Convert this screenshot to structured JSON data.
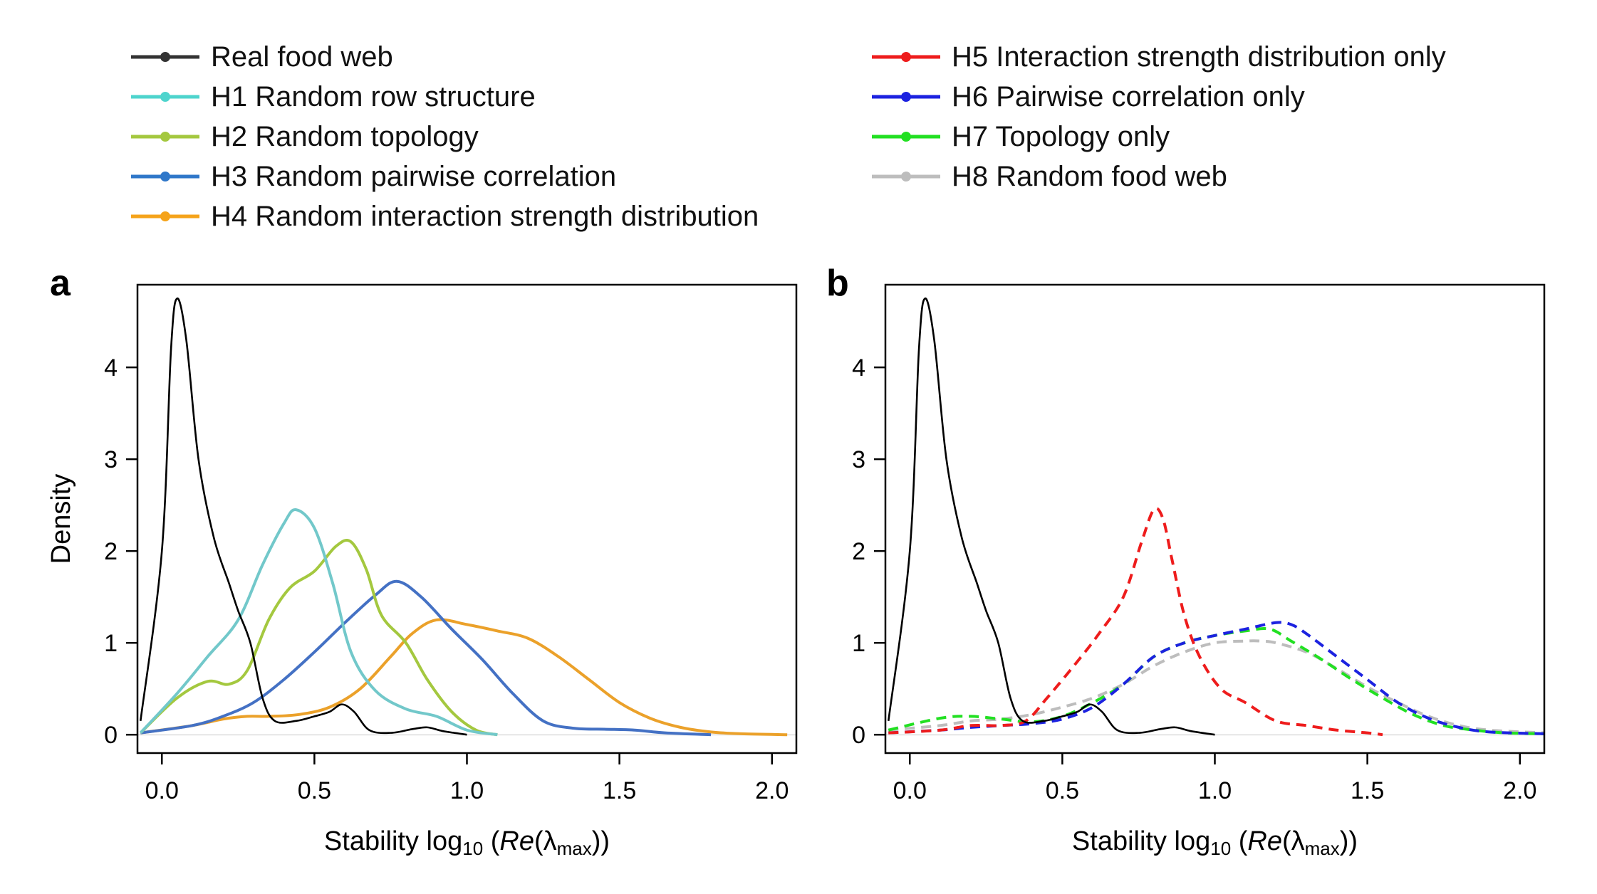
{
  "legend": {
    "left": [
      {
        "label": "Real food web",
        "color": "#333333",
        "dash": false
      },
      {
        "label": "H1 Random row structure",
        "color": "#4ed4cd",
        "dash": false
      },
      {
        "label": "H2 Random topology",
        "color": "#a4c83f",
        "dash": false
      },
      {
        "label": "H3 Random pairwise correlation",
        "color": "#2f77c9",
        "dash": false
      },
      {
        "label": "H4 Random interaction strength distribution",
        "color": "#f5a31a",
        "dash": false
      }
    ],
    "right": [
      {
        "label": "H5 Interaction strength distribution only",
        "color": "#ee1c1c",
        "dash": false
      },
      {
        "label": "H6 Pairwise correlation only",
        "color": "#1c22e0",
        "dash": false
      },
      {
        "label": "H7 Topology only",
        "color": "#22e022",
        "dash": false
      },
      {
        "label": "H8 Random food web",
        "color": "#bdbdbd",
        "dash": false
      }
    ]
  },
  "chart_data": [
    {
      "panel": "a",
      "type": "line",
      "title": "",
      "xlabel": "Stability log10 (Re(λmax))",
      "xlabel_parts": {
        "prefix": "Stability log",
        "sub": "10",
        "open": " (",
        "italic": "Re",
        "mid": "(λ",
        "sub2": "max",
        "close": "))"
      },
      "ylabel": "Density",
      "xlim": [
        -0.08,
        2.08
      ],
      "ylim": [
        -0.2,
        4.9
      ],
      "xticks": [
        0.0,
        0.5,
        1.0,
        1.5,
        2.0
      ],
      "xtick_labels": [
        "0.0",
        "0.5",
        "1.0",
        "1.5",
        "2.0"
      ],
      "yticks": [
        0,
        1,
        2,
        3,
        4
      ],
      "ytick_labels": [
        "0",
        "1",
        "2",
        "3",
        "4"
      ],
      "legend_position": "top",
      "series": [
        {
          "name": "H4 Random interaction strength distribution",
          "color": "#eba12a",
          "dash": false,
          "x": [
            -0.07,
            0.1,
            0.2,
            0.28,
            0.35,
            0.45,
            0.55,
            0.65,
            0.75,
            0.82,
            0.9,
            1.0,
            1.1,
            1.2,
            1.3,
            1.4,
            1.5,
            1.6,
            1.7,
            1.8,
            1.9,
            2.05
          ],
          "y": [
            0.02,
            0.1,
            0.17,
            0.2,
            0.2,
            0.22,
            0.3,
            0.5,
            0.85,
            1.1,
            1.25,
            1.2,
            1.13,
            1.05,
            0.85,
            0.6,
            0.35,
            0.18,
            0.08,
            0.03,
            0.01,
            0.0
          ]
        },
        {
          "name": "H3 Random pairwise correlation",
          "color": "#4471c4",
          "dash": false,
          "x": [
            -0.07,
            0.1,
            0.2,
            0.3,
            0.4,
            0.5,
            0.6,
            0.7,
            0.77,
            0.85,
            0.95,
            1.05,
            1.15,
            1.25,
            1.35,
            1.45,
            1.55,
            1.65,
            1.8
          ],
          "y": [
            0.02,
            0.1,
            0.2,
            0.35,
            0.6,
            0.9,
            1.22,
            1.52,
            1.67,
            1.5,
            1.15,
            0.82,
            0.45,
            0.15,
            0.07,
            0.06,
            0.05,
            0.02,
            0.0
          ]
        },
        {
          "name": "H2 Random topology",
          "color": "#a4c83f",
          "dash": false,
          "x": [
            -0.07,
            0.05,
            0.15,
            0.22,
            0.28,
            0.35,
            0.42,
            0.5,
            0.57,
            0.62,
            0.67,
            0.72,
            0.8,
            0.87,
            0.95,
            1.03,
            1.1
          ],
          "y": [
            0.02,
            0.4,
            0.58,
            0.55,
            0.7,
            1.25,
            1.6,
            1.78,
            2.05,
            2.1,
            1.8,
            1.3,
            1.0,
            0.6,
            0.25,
            0.05,
            0.0
          ]
        },
        {
          "name": "H1 Random row structure",
          "color": "#72c8ca",
          "dash": false,
          "x": [
            -0.07,
            0.05,
            0.15,
            0.25,
            0.33,
            0.4,
            0.44,
            0.5,
            0.56,
            0.62,
            0.7,
            0.8,
            0.9,
            1.0,
            1.1
          ],
          "y": [
            0.02,
            0.45,
            0.85,
            1.25,
            1.85,
            2.3,
            2.45,
            2.25,
            1.65,
            0.9,
            0.48,
            0.28,
            0.2,
            0.05,
            0.0
          ]
        },
        {
          "name": "Real food web",
          "color": "#000000",
          "dash": false,
          "x": [
            -0.07,
            0.0,
            0.03,
            0.05,
            0.08,
            0.12,
            0.17,
            0.22,
            0.25,
            0.29,
            0.33,
            0.37,
            0.44,
            0.5,
            0.55,
            0.59,
            0.63,
            0.68,
            0.75,
            0.82,
            0.87,
            0.92,
            1.0
          ],
          "y": [
            0.15,
            2.0,
            4.2,
            4.75,
            4.3,
            3.0,
            2.15,
            1.65,
            1.35,
            1.0,
            0.4,
            0.15,
            0.15,
            0.2,
            0.25,
            0.33,
            0.25,
            0.05,
            0.02,
            0.06,
            0.08,
            0.04,
            0.0
          ]
        }
      ]
    },
    {
      "panel": "b",
      "type": "line",
      "title": "",
      "xlabel": "Stability log10 (Re(λmax))",
      "xlabel_parts": {
        "prefix": "Stability log",
        "sub": "10",
        "open": " (",
        "italic": "Re",
        "mid": "(λ",
        "sub2": "max",
        "close": "))"
      },
      "ylabel": "",
      "xlim": [
        -0.08,
        2.08
      ],
      "ylim": [
        -0.2,
        4.9
      ],
      "xticks": [
        0.0,
        0.5,
        1.0,
        1.5,
        2.0
      ],
      "xtick_labels": [
        "0.0",
        "0.5",
        "1.0",
        "1.5",
        "2.0"
      ],
      "yticks": [
        0,
        1,
        2,
        3,
        4
      ],
      "ytick_labels": [
        "0",
        "1",
        "2",
        "3",
        "4"
      ],
      "legend_position": "top",
      "series": [
        {
          "name": "H8 Random food web",
          "color": "#bdbdbd",
          "dash": true,
          "x": [
            -0.07,
            0.1,
            0.2,
            0.3,
            0.4,
            0.5,
            0.6,
            0.7,
            0.8,
            0.9,
            1.0,
            1.1,
            1.15,
            1.2,
            1.3,
            1.4,
            1.5,
            1.6,
            1.7,
            1.8,
            1.9,
            2.08
          ],
          "y": [
            0.05,
            0.1,
            0.15,
            0.17,
            0.22,
            0.3,
            0.4,
            0.55,
            0.75,
            0.9,
            1.0,
            1.02,
            1.02,
            1.0,
            0.9,
            0.72,
            0.52,
            0.35,
            0.2,
            0.1,
            0.05,
            0.02
          ]
        },
        {
          "name": "H7 Topology only",
          "color": "#22e022",
          "dash": true,
          "x": [
            -0.07,
            0.1,
            0.2,
            0.3,
            0.4,
            0.5,
            0.6,
            0.7,
            0.8,
            0.9,
            1.0,
            1.1,
            1.18,
            1.25,
            1.35,
            1.45,
            1.55,
            1.65,
            1.75,
            1.85,
            1.95,
            2.08
          ],
          "y": [
            0.05,
            0.18,
            0.2,
            0.17,
            0.14,
            0.2,
            0.35,
            0.55,
            0.85,
            1.0,
            1.08,
            1.13,
            1.15,
            1.02,
            0.82,
            0.6,
            0.4,
            0.22,
            0.1,
            0.05,
            0.02,
            0.01
          ]
        },
        {
          "name": "H6 Pairwise correlation only",
          "color": "#1c22e0",
          "dash": true,
          "x": [
            -0.07,
            0.1,
            0.2,
            0.3,
            0.4,
            0.5,
            0.6,
            0.7,
            0.8,
            0.9,
            1.0,
            1.1,
            1.2,
            1.25,
            1.3,
            1.4,
            1.5,
            1.6,
            1.7,
            1.8,
            1.9,
            2.08
          ],
          "y": [
            0.02,
            0.05,
            0.08,
            0.1,
            0.12,
            0.17,
            0.3,
            0.55,
            0.85,
            1.0,
            1.08,
            1.15,
            1.22,
            1.2,
            1.1,
            0.85,
            0.6,
            0.35,
            0.18,
            0.08,
            0.03,
            0.01
          ]
        },
        {
          "name": "H5 Interaction strength distribution only",
          "color": "#ee1c1c",
          "dash": true,
          "x": [
            -0.07,
            0.1,
            0.2,
            0.3,
            0.38,
            0.45,
            0.55,
            0.62,
            0.7,
            0.76,
            0.8,
            0.83,
            0.86,
            0.9,
            0.95,
            1.02,
            1.1,
            1.2,
            1.3,
            1.4,
            1.5,
            1.55
          ],
          "y": [
            0.02,
            0.05,
            0.1,
            0.1,
            0.15,
            0.4,
            0.8,
            1.1,
            1.5,
            2.1,
            2.45,
            2.35,
            1.9,
            1.3,
            0.85,
            0.5,
            0.35,
            0.15,
            0.1,
            0.05,
            0.02,
            0.0
          ]
        },
        {
          "name": "Real food web",
          "color": "#000000",
          "dash": false,
          "x": [
            -0.07,
            0.0,
            0.03,
            0.05,
            0.08,
            0.12,
            0.17,
            0.22,
            0.25,
            0.29,
            0.33,
            0.37,
            0.44,
            0.5,
            0.55,
            0.59,
            0.63,
            0.68,
            0.75,
            0.82,
            0.87,
            0.92,
            1.0
          ],
          "y": [
            0.15,
            2.0,
            4.2,
            4.75,
            4.3,
            3.0,
            2.15,
            1.65,
            1.35,
            1.0,
            0.4,
            0.15,
            0.15,
            0.2,
            0.25,
            0.33,
            0.25,
            0.05,
            0.02,
            0.06,
            0.08,
            0.04,
            0.0
          ]
        }
      ]
    }
  ]
}
